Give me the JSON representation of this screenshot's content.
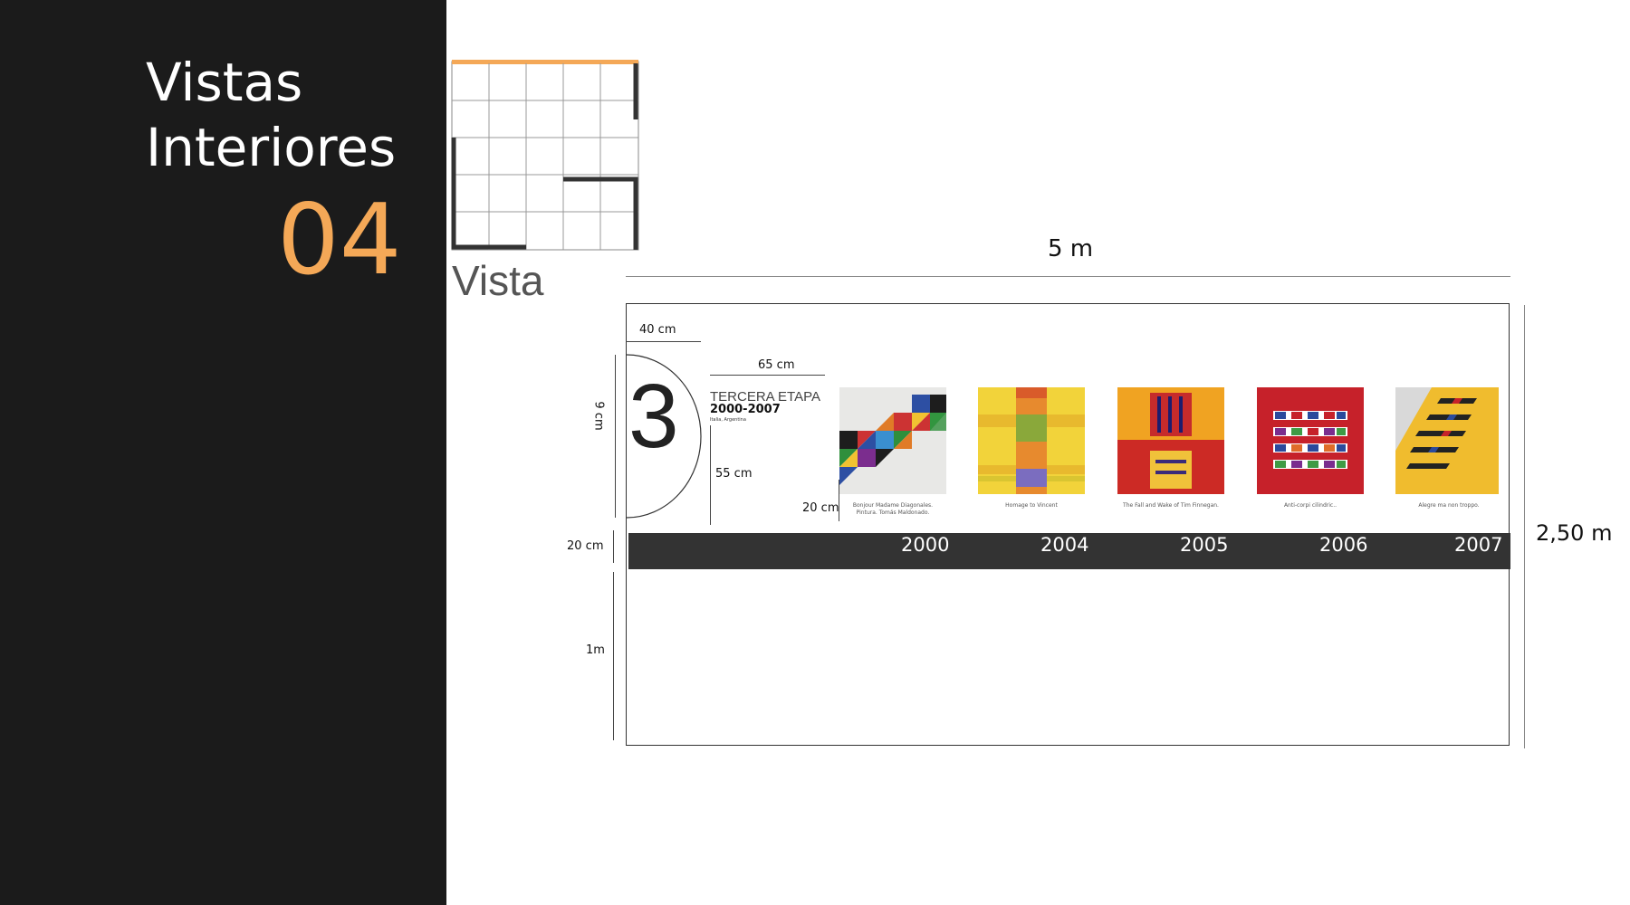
{
  "sidebar": {
    "title_line1": "Vistas",
    "title_line2": "Interiores",
    "section_number": "04"
  },
  "floorplan": {
    "label": "Vista",
    "accent": "#f4a857"
  },
  "dimensions": {
    "width_total": "5 m",
    "height_total": "2,50 m",
    "logo_width": "40 cm",
    "text_width": "65 cm",
    "logo_height": "9 cm",
    "text_height": "55 cm",
    "art_gap": "20 cm",
    "band_height": "20 cm",
    "floor_height": "1m"
  },
  "stage": {
    "number": "3",
    "title": "TERCERA ETAPA",
    "years": "2000-2007",
    "place": "Italia, Argentina"
  },
  "timeline": {
    "band_color": "#333333",
    "years": [
      "2000",
      "2004",
      "2005",
      "2006",
      "2007"
    ]
  },
  "artworks": [
    {
      "caption_line1": "Bonjour Madame Diagonales.",
      "caption_line2": "Pintura. Tomás Maldonado."
    },
    {
      "caption_line1": "Homage to Vincent",
      "caption_line2": ""
    },
    {
      "caption_line1": "The Fall and Wake of Tim Finnegan.",
      "caption_line2": ""
    },
    {
      "caption_line1": "Anti-corpi cilindric..",
      "caption_line2": ""
    },
    {
      "caption_line1": "Alegre ma non troppo.",
      "caption_line2": ""
    }
  ]
}
